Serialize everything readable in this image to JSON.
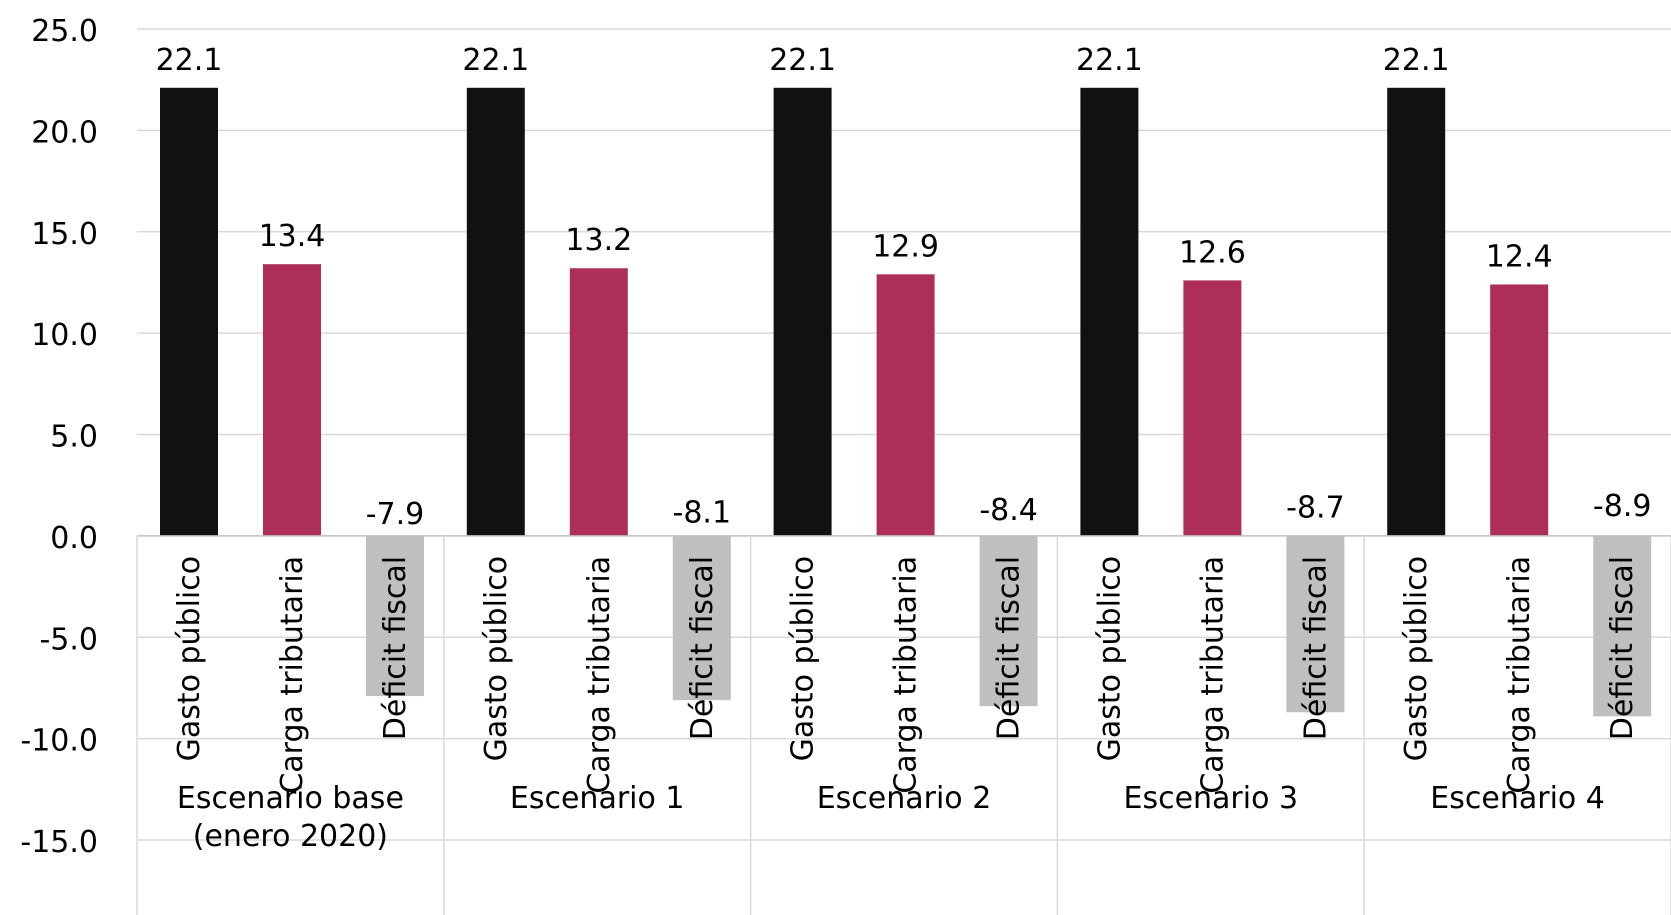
{
  "chart_data": {
    "type": "bar",
    "ylim": [
      -15,
      25
    ],
    "yticks": [
      "25.0",
      "20.0",
      "15.0",
      "10.0",
      "5.0",
      "0.0",
      "-5.0",
      "-10.0",
      "-15.0"
    ],
    "ytick_values": [
      25,
      20,
      15,
      10,
      5,
      0,
      -5,
      -10,
      -15
    ],
    "grid": true,
    "colors": {
      "Gasto público": "#111111",
      "Carga tributaria": "#AD2F58",
      "Déficit fiscal": "#BFBFBF"
    },
    "groups": [
      {
        "label_lines": [
          "Escenario base",
          "(enero 2020)"
        ],
        "bars": [
          {
            "category": "Gasto público",
            "value": 22.1,
            "label": "22.1"
          },
          {
            "category": "Carga tributaria",
            "value": 13.4,
            "label": "13.4"
          },
          {
            "category": "Déficit fiscal",
            "value": -7.9,
            "label": "-7.9"
          }
        ]
      },
      {
        "label_lines": [
          "Escenario 1"
        ],
        "bars": [
          {
            "category": "Gasto público",
            "value": 22.1,
            "label": "22.1"
          },
          {
            "category": "Carga tributaria",
            "value": 13.2,
            "label": "13.2"
          },
          {
            "category": "Déficit fiscal",
            "value": -8.1,
            "label": "-8.1"
          }
        ]
      },
      {
        "label_lines": [
          "Escenario 2"
        ],
        "bars": [
          {
            "category": "Gasto público",
            "value": 22.1,
            "label": "22.1"
          },
          {
            "category": "Carga tributaria",
            "value": 12.9,
            "label": "12.9"
          },
          {
            "category": "Déficit fiscal",
            "value": -8.4,
            "label": "-8.4"
          }
        ]
      },
      {
        "label_lines": [
          "Escenario 3"
        ],
        "bars": [
          {
            "category": "Gasto público",
            "value": 22.1,
            "label": "22.1"
          },
          {
            "category": "Carga tributaria",
            "value": 12.6,
            "label": "12.6"
          },
          {
            "category": "Déficit fiscal",
            "value": -8.7,
            "label": "-8.7"
          }
        ]
      },
      {
        "label_lines": [
          "Escenario 4"
        ],
        "bars": [
          {
            "category": "Gasto público",
            "value": 22.1,
            "label": "22.1"
          },
          {
            "category": "Carga tributaria",
            "value": 12.4,
            "label": "12.4"
          },
          {
            "category": "Déficit fiscal",
            "value": -8.9,
            "label": "-8.9"
          }
        ]
      }
    ]
  }
}
